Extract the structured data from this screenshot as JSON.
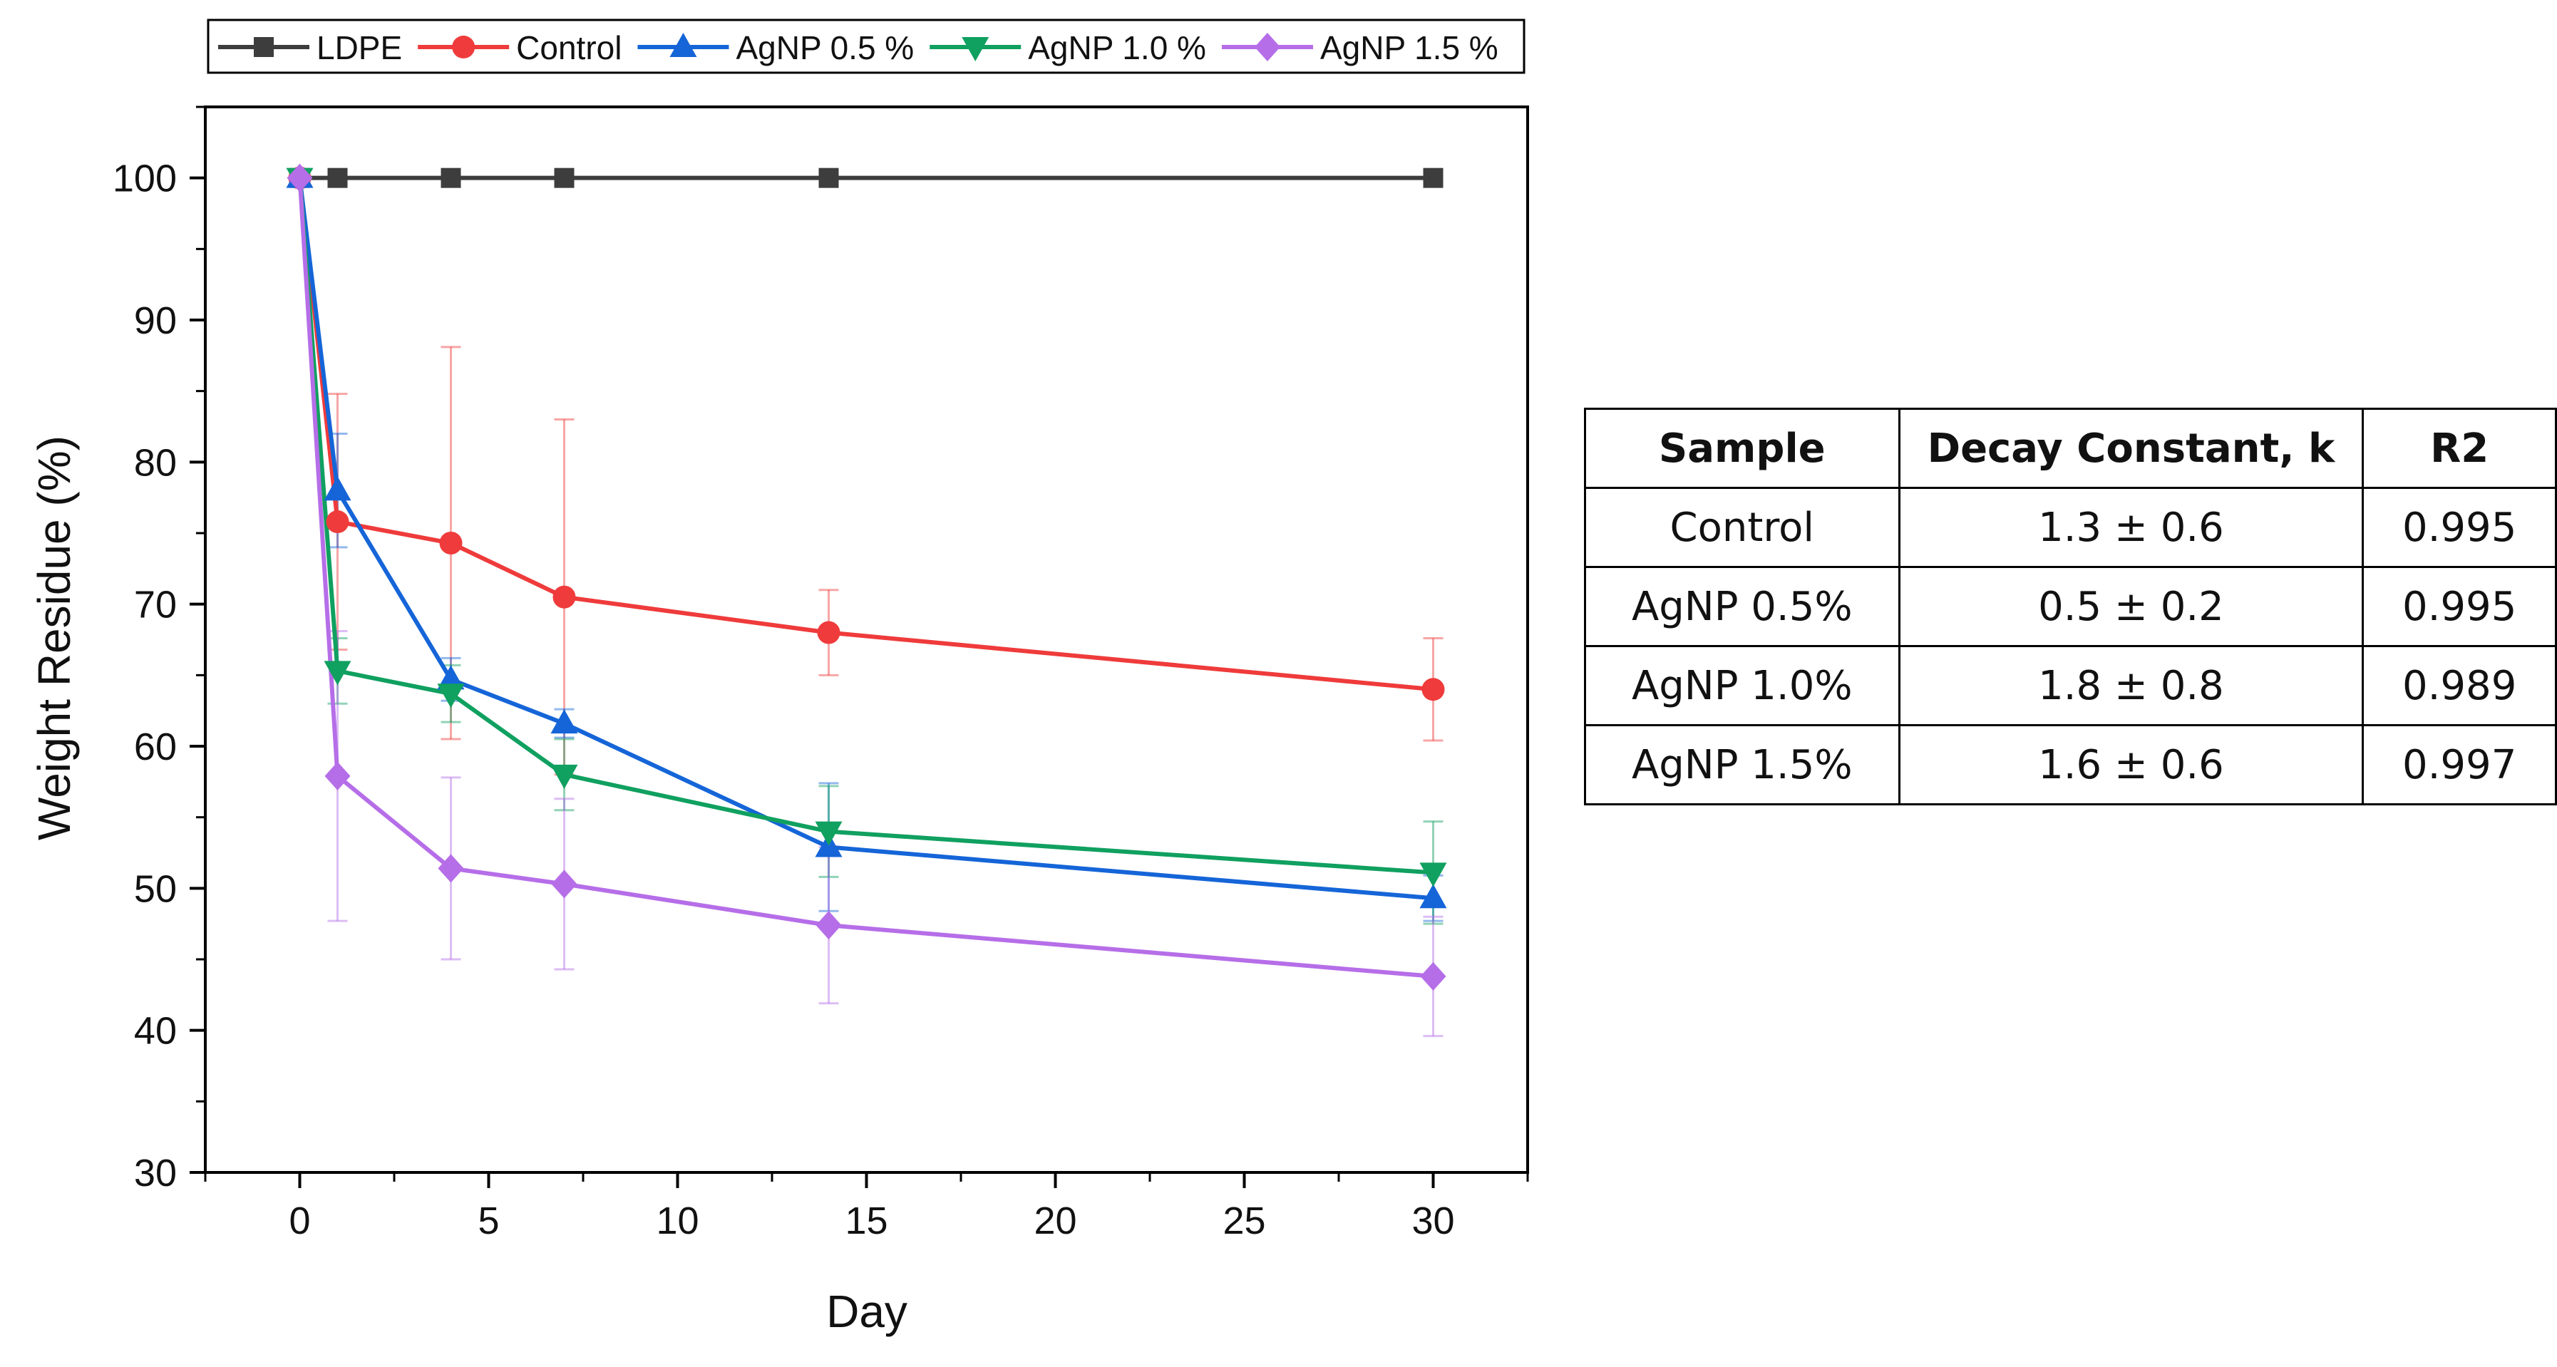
{
  "chart_data": {
    "type": "line",
    "title": "",
    "xlabel": "Day",
    "ylabel": "Weight Residue (%)",
    "xlim": [
      -2.5,
      32.5
    ],
    "ylim": [
      30,
      105
    ],
    "xticks": [
      0,
      5,
      10,
      15,
      20,
      25,
      30
    ],
    "yticks": [
      30,
      40,
      50,
      60,
      70,
      80,
      90,
      100
    ],
    "grid": false,
    "legend_position": "top",
    "x": [
      0,
      1,
      4,
      7,
      14,
      30
    ],
    "series": [
      {
        "name": "LDPE",
        "color": "#3d3d3d",
        "marker": "square",
        "values": [
          100,
          100,
          100,
          100,
          100,
          100
        ],
        "errors": [
          0,
          0,
          0,
          0,
          0,
          0
        ]
      },
      {
        "name": "Control",
        "color": "#ef3b3b",
        "marker": "circle",
        "values": [
          100,
          75.8,
          74.3,
          70.5,
          68.0,
          64.0
        ],
        "errors": [
          0,
          9.0,
          13.8,
          12.5,
          3.0,
          3.6
        ]
      },
      {
        "name": "AgNP 0.5 %",
        "color": "#1565d8",
        "marker": "triangle-up",
        "values": [
          100,
          78.0,
          64.7,
          61.6,
          52.9,
          49.3
        ],
        "errors": [
          0,
          4.0,
          1.5,
          1.0,
          4.5,
          1.6
        ]
      },
      {
        "name": "AgNP 1.0 %",
        "color": "#10a060",
        "marker": "triangle-down",
        "values": [
          100,
          65.3,
          63.7,
          58.0,
          54.0,
          51.1
        ],
        "errors": [
          0,
          2.3,
          2.0,
          2.5,
          3.2,
          3.6
        ]
      },
      {
        "name": "AgNP 1.5 %",
        "color": "#b66ee8",
        "marker": "diamond",
        "values": [
          100,
          57.9,
          51.4,
          50.3,
          47.4,
          43.8
        ],
        "errors": [
          0,
          10.2,
          6.4,
          6.0,
          5.5,
          4.2
        ]
      }
    ]
  },
  "table": {
    "headers": [
      "Sample",
      "Decay Constant, k",
      "R2"
    ],
    "rows": [
      [
        "Control",
        "1.3 ± 0.6",
        "0.995"
      ],
      [
        "AgNP 0.5%",
        "0.5 ± 0.2",
        "0.995"
      ],
      [
        "AgNP 1.0%",
        "1.8 ± 0.8",
        "0.989"
      ],
      [
        "AgNP 1.5%",
        "1.6 ± 0.6",
        "0.997"
      ]
    ]
  }
}
